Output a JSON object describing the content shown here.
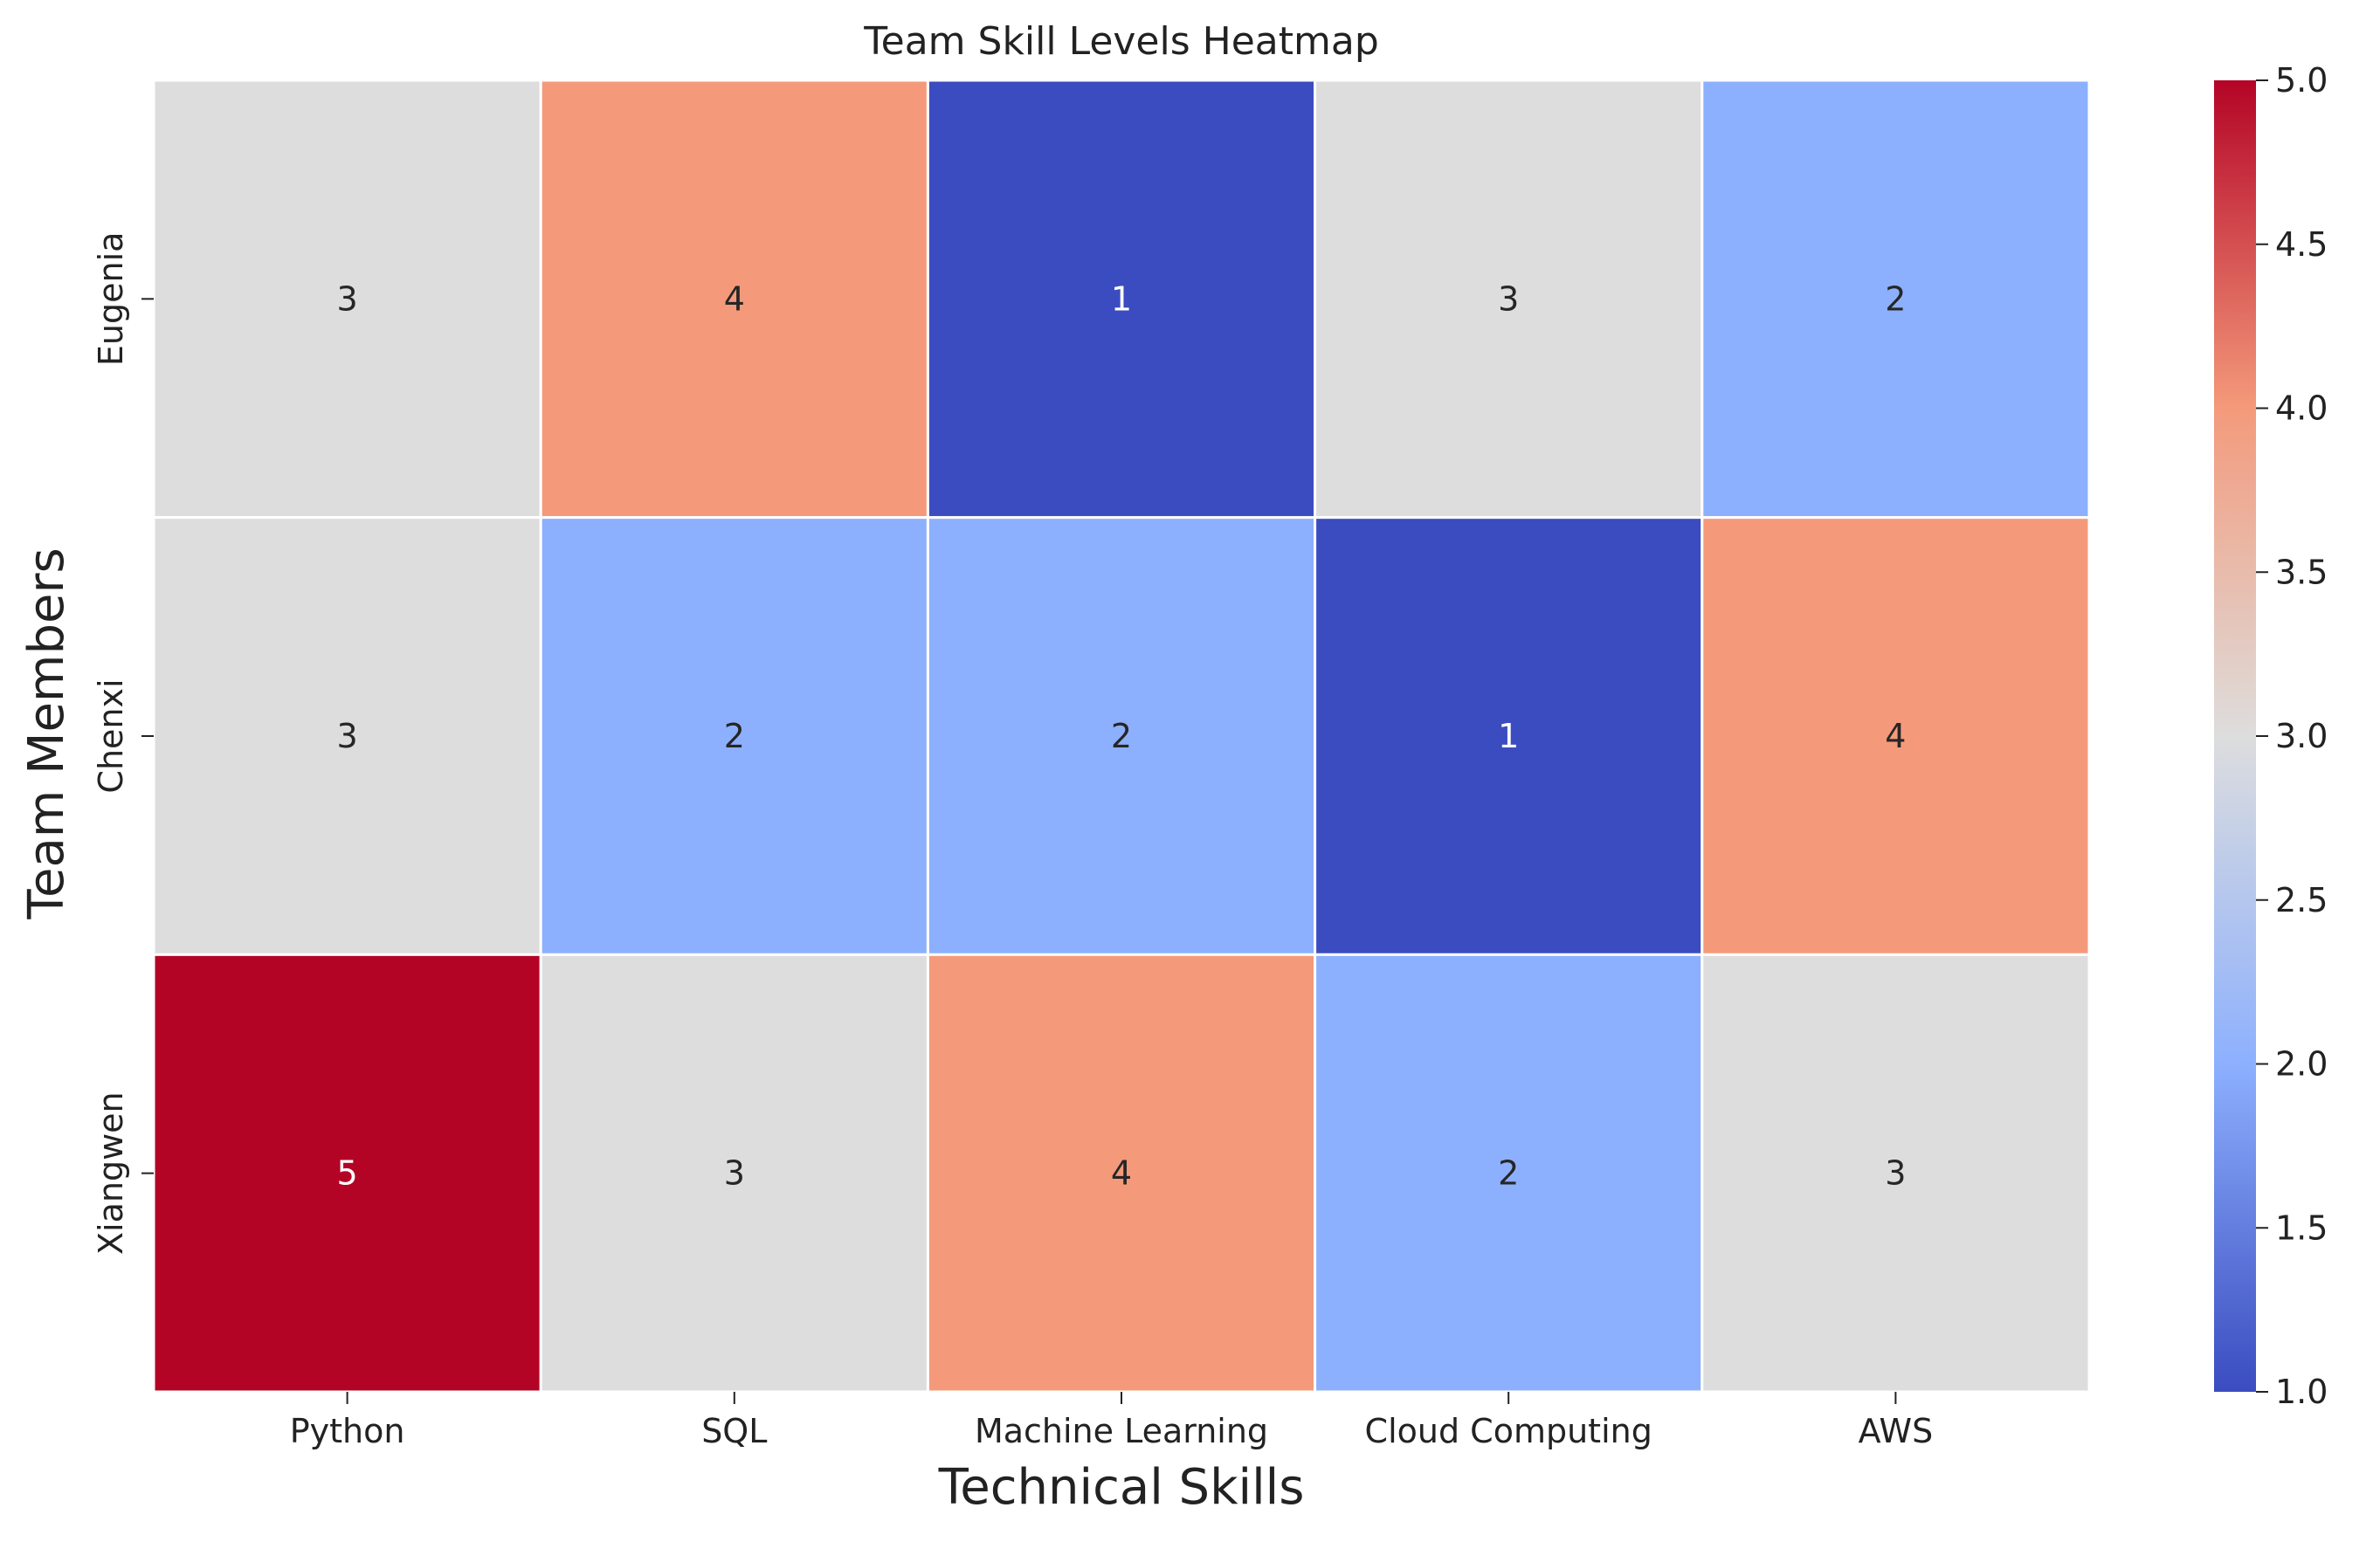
{
  "chart_data": {
    "type": "heatmap",
    "title": "Team Skill Levels Heatmap",
    "xlabel": "Technical Skills",
    "ylabel": "Team Members",
    "x_categories": [
      "Python",
      "SQL",
      "Machine Learning",
      "Cloud Computing",
      "AWS"
    ],
    "y_categories": [
      "Eugenia",
      "Chenxi",
      "Xiangwen"
    ],
    "values": [
      [
        3,
        4,
        1,
        3,
        2
      ],
      [
        3,
        2,
        2,
        1,
        4
      ],
      [
        5,
        3,
        4,
        2,
        3
      ]
    ],
    "annotations": true,
    "colormap": "coolwarm",
    "vmin": 1,
    "vmax": 5,
    "colorbar_ticks": [
      "1.0",
      "1.5",
      "2.0",
      "2.5",
      "3.0",
      "3.5",
      "4.0",
      "4.5",
      "5.0"
    ],
    "colors": {
      "low": "#3b4cc0",
      "mid": "#dddddd",
      "high": "#b40426",
      "cell_border": "#ffffff"
    }
  }
}
